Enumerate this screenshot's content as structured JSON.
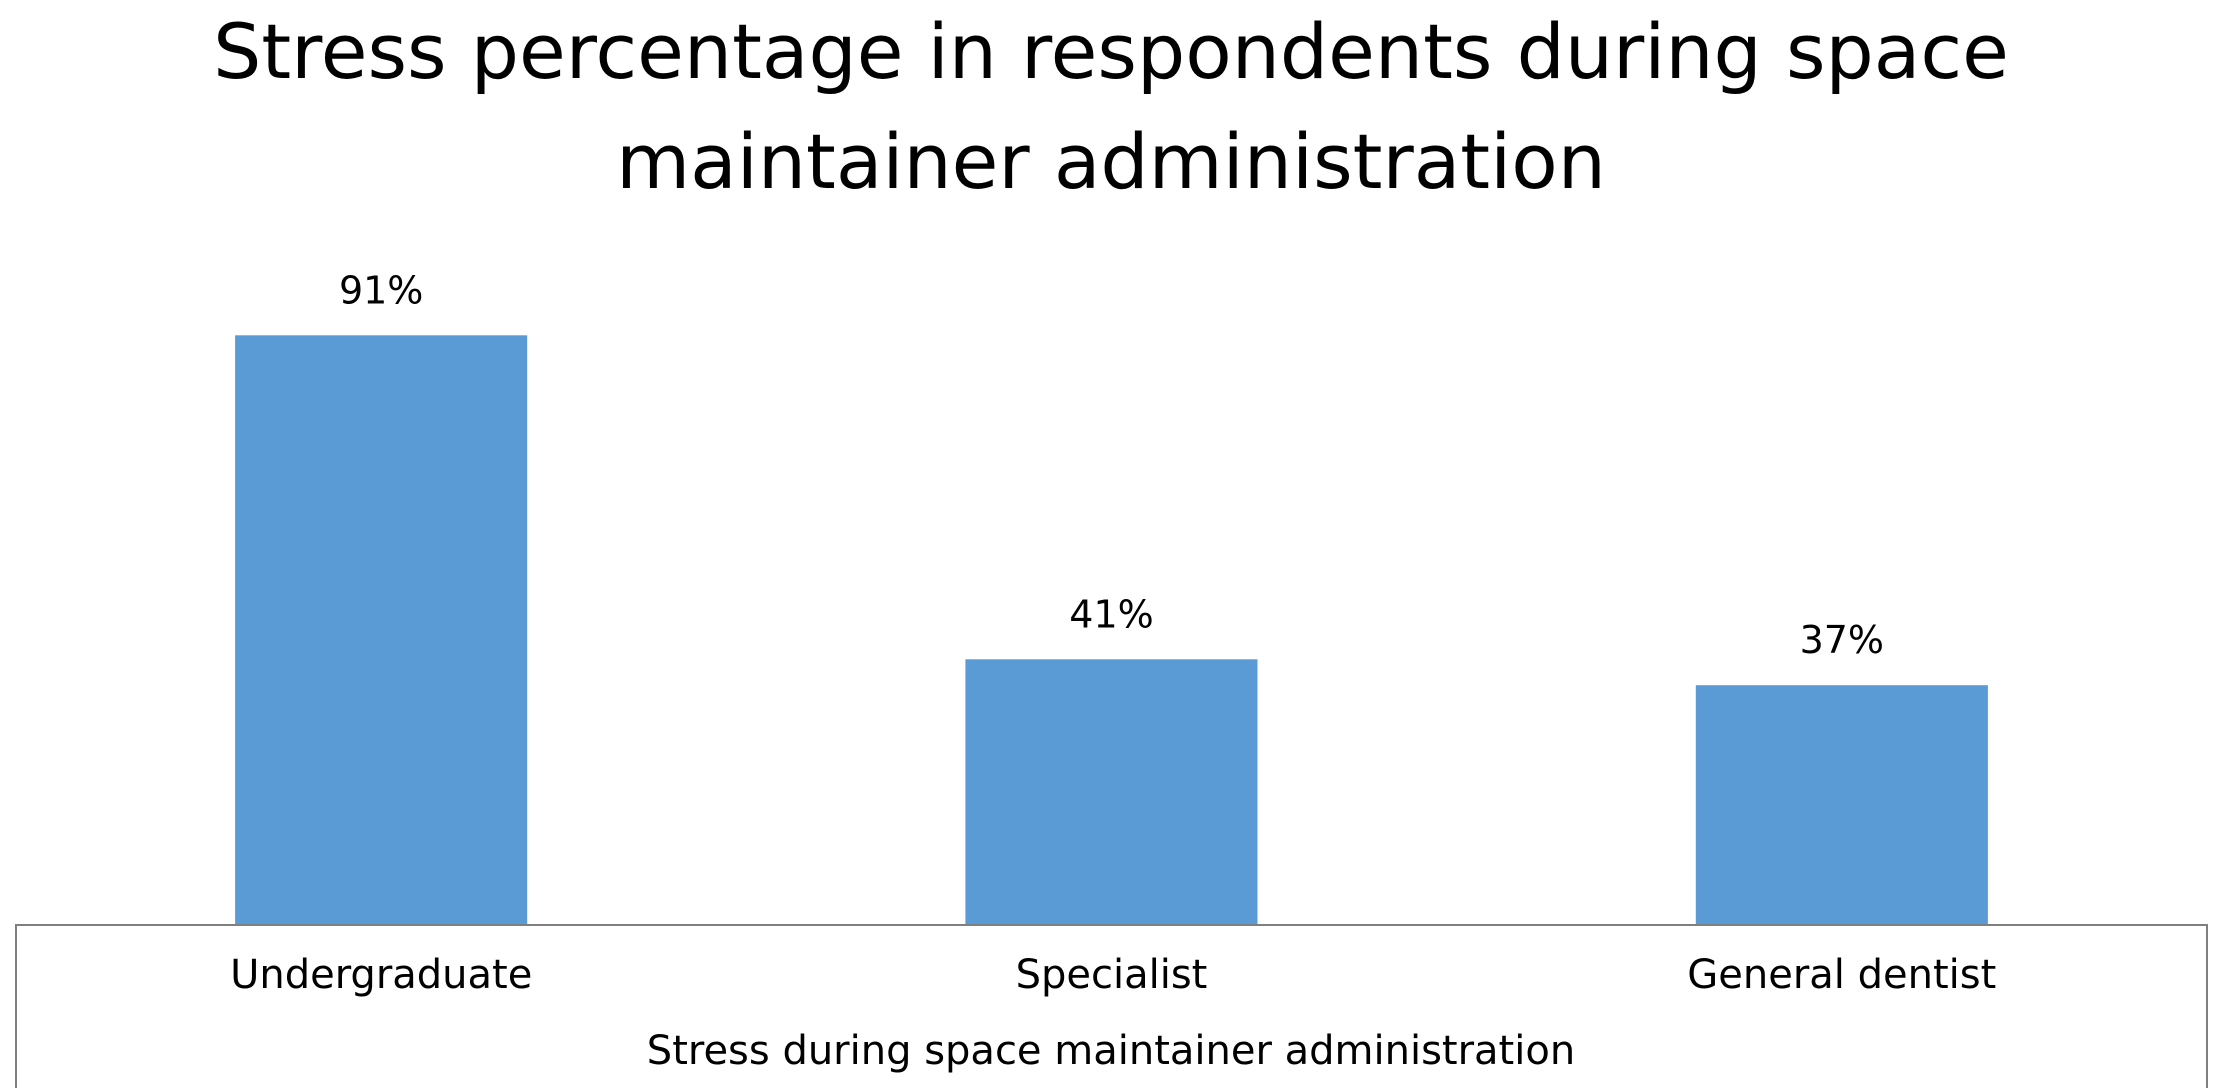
{
  "chart_data": {
    "type": "bar",
    "title_lines": [
      "Stress percentage in respondents during space",
      "maintainer administration"
    ],
    "categories": [
      "Undergraduate",
      "Specialist",
      "General dentist"
    ],
    "values": [
      91,
      41,
      37
    ],
    "data_labels": [
      "91%",
      "41%",
      "37%"
    ],
    "xlabel": "Stress during space maintainer administration",
    "ylabel": "",
    "ylim": [
      0,
      100
    ],
    "grid": false,
    "legend": "none",
    "bar_color": "#5B9BD5",
    "axis_box_color": "#7F7F7F"
  }
}
